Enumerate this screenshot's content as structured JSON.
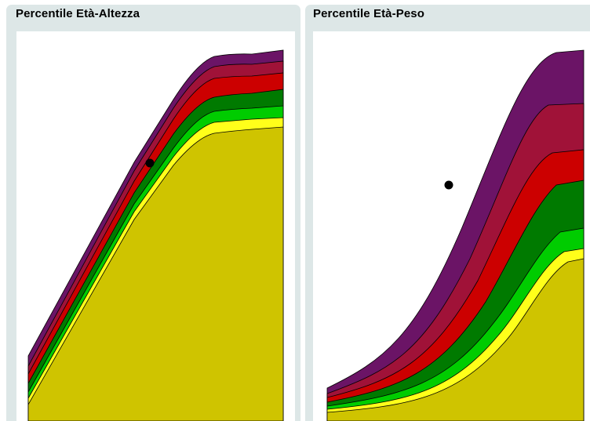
{
  "panels": {
    "left": {
      "title": "Percentile Età-Altezza"
    },
    "right": {
      "title": "Percentile Età-Peso"
    }
  },
  "band_colors": [
    "#6b1466",
    "#a01238",
    "#cc0000",
    "#007a00",
    "#00cc00",
    "#ffff1a",
    "#cfc400"
  ]
}
